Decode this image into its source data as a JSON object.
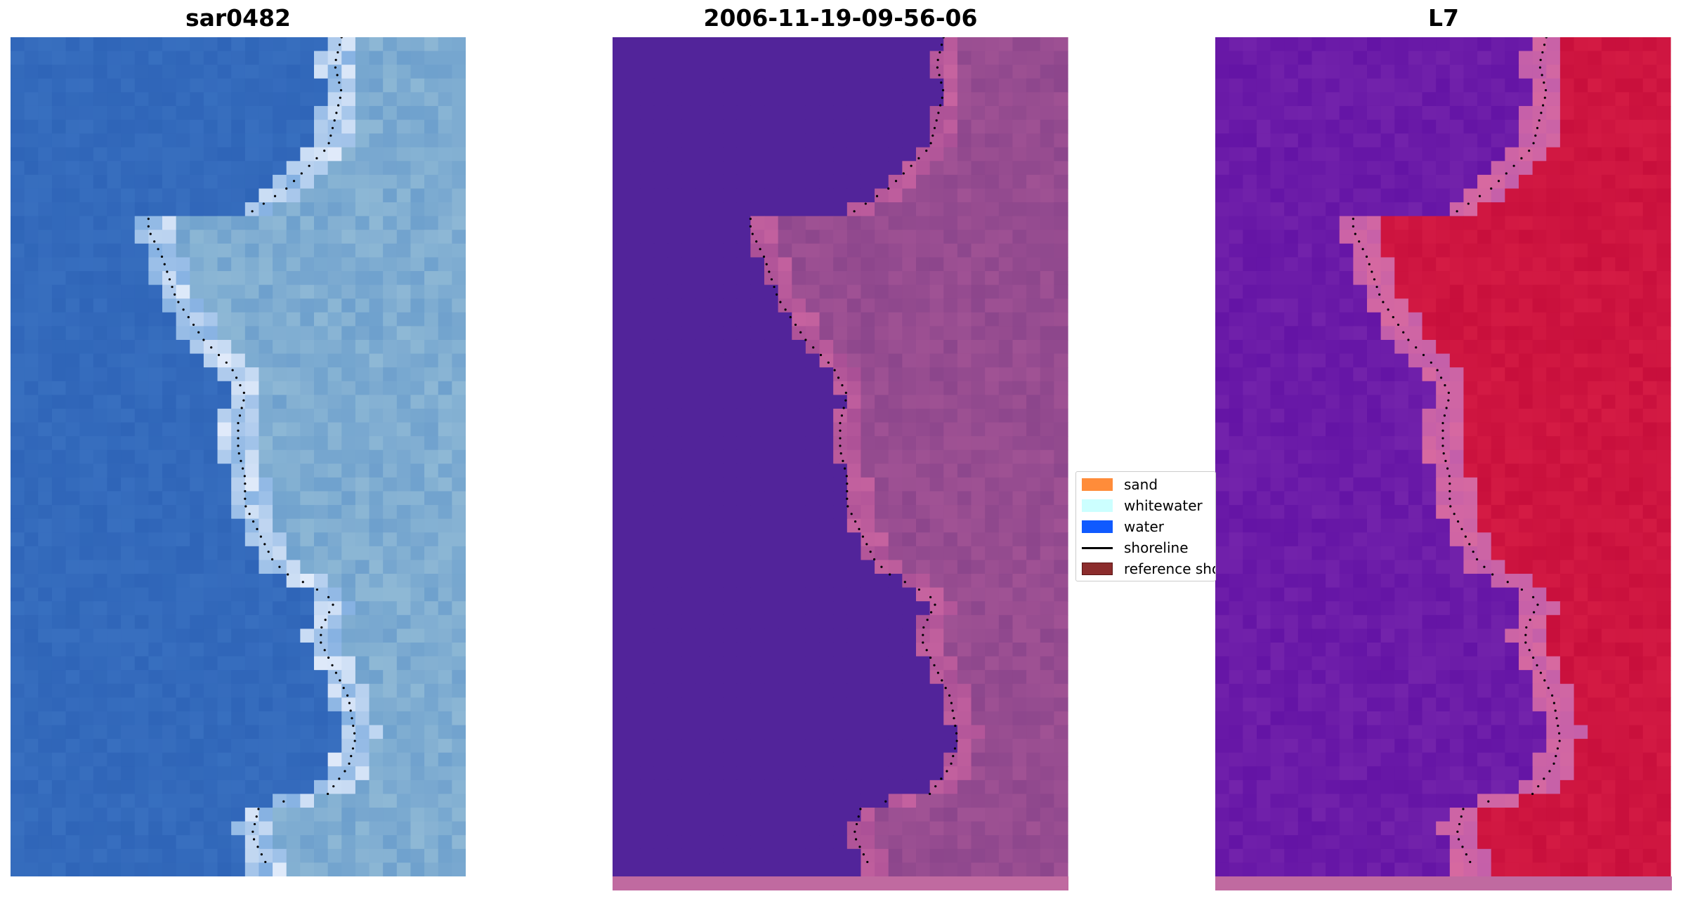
{
  "panels": [
    {
      "title": "sar0482"
    },
    {
      "title": "2006-11-19-09-56-06"
    },
    {
      "title": "L7"
    }
  ],
  "legend": {
    "items": [
      {
        "label": "sand",
        "color": "#ff8c3a",
        "kind": "patch"
      },
      {
        "label": "whitewater",
        "color": "#ccffff",
        "kind": "patch"
      },
      {
        "label": "water",
        "color": "#0f5aff",
        "kind": "patch"
      },
      {
        "label": "shoreline",
        "color": "#000000",
        "kind": "line"
      },
      {
        "label": "reference shoreline",
        "color": "#8b2c2c",
        "kind": "patch"
      }
    ]
  },
  "colors": {
    "rgb_water": "#2f65b8",
    "rgb_land": "#8fb3d6",
    "classified_water": "#52249a",
    "classified_land": "#9a4f8e",
    "mndwi_water": "#6a1aa8",
    "mndwi_land": "#cc1340",
    "shoreline_dots": "#000000"
  }
}
